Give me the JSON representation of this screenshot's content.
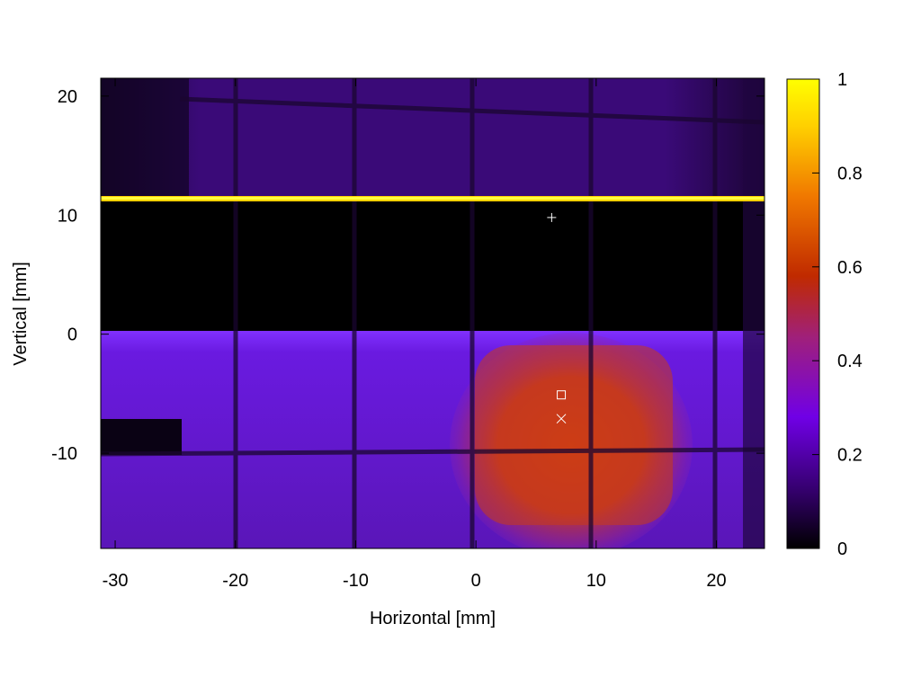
{
  "chart_data": {
    "type": "heatmap",
    "title": "",
    "xlabel": "Horizontal [mm]",
    "ylabel": "Vertical [mm]",
    "xlim": [
      -31.2,
      24
    ],
    "ylim": [
      -18,
      21.5
    ],
    "x_ticks": [
      -30,
      -20,
      -10,
      0,
      10,
      20
    ],
    "y_ticks": [
      -10,
      0,
      10,
      20
    ],
    "colorbar": {
      "range": [
        0,
        1
      ],
      "ticks": [
        0,
        0.2,
        0.4,
        0.6,
        0.8,
        1
      ],
      "colormap": [
        "#000000",
        "#33006a",
        "#7000e6",
        "#c02a00",
        "#f07800",
        "#ffea00",
        "#ffff00"
      ]
    },
    "markers": [
      {
        "symbol": "plus",
        "x": 6.3,
        "y": 9.8
      },
      {
        "symbol": "square",
        "x": 7.1,
        "y": -5.1
      },
      {
        "symbol": "cross",
        "x": 7.1,
        "y": -7.1
      }
    ],
    "regions": [
      {
        "label": "top band",
        "y_range": [
          11.5,
          21.5
        ],
        "value": 0.12
      },
      {
        "label": "bright edge line",
        "y": 11.5,
        "value": 1.0
      },
      {
        "label": "dark gap",
        "y_range": [
          0.5,
          11.5
        ],
        "value": 0.0
      },
      {
        "label": "lower band",
        "y_range": [
          -18,
          0.5
        ],
        "value": 0.3
      },
      {
        "label": "hot spot",
        "x_range": [
          -1.5,
          16.5
        ],
        "y_range": [
          -16,
          -0.5
        ],
        "value": 0.55
      }
    ],
    "grid": false,
    "legend": "colorbar-right"
  }
}
